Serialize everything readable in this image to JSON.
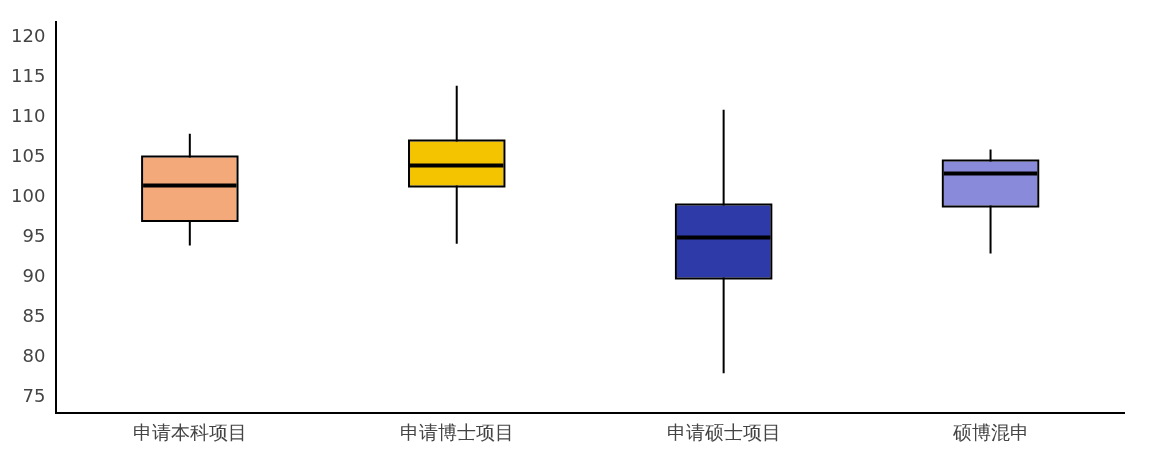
{
  "chart_data": {
    "type": "box",
    "categories": [
      "申请本科项目",
      "申请博士项目",
      "申请硕士项目",
      "硕博混申"
    ],
    "boxes": [
      {
        "low": 94,
        "q1": 97.2,
        "median": 101.5,
        "q3": 105,
        "high": 108
      },
      {
        "low": 94.2,
        "q1": 101.5,
        "median": 104,
        "q3": 107,
        "high": 114
      },
      {
        "low": 78,
        "q1": 90,
        "median": 95,
        "q3": 99,
        "high": 111
      },
      {
        "low": 93,
        "q1": 99,
        "median": 103,
        "q3": 104.5,
        "high": 106
      }
    ],
    "colors": [
      "#f4a97a",
      "#f5c400",
      "#2d3aa8",
      "#8a8adb"
    ],
    "ylim": [
      73,
      122
    ],
    "yticks": [
      75,
      80,
      85,
      90,
      95,
      100,
      105,
      110,
      115,
      120
    ],
    "grid": false,
    "legend": false
  }
}
